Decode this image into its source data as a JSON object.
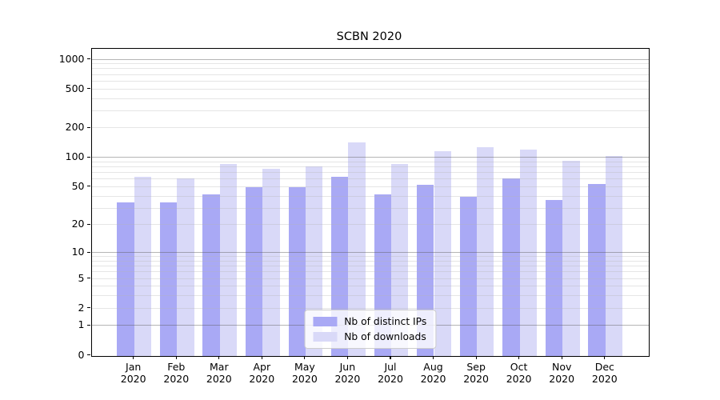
{
  "figure": {
    "title": "SCBN 2020"
  },
  "axes": {
    "y_tick_labels": [
      "0",
      "1",
      "2",
      "5",
      "10",
      "20",
      "50",
      "100",
      "200",
      "500",
      "1000"
    ],
    "x_year": "2020",
    "x_months": [
      "Jan",
      "Feb",
      "Mar",
      "Apr",
      "May",
      "Jun",
      "Jul",
      "Aug",
      "Sep",
      "Oct",
      "Nov",
      "Dec"
    ]
  },
  "legend": {
    "items": [
      {
        "label": "Nb of distinct IPs",
        "color": "#a9a9f5"
      },
      {
        "label": "Nb of downloads",
        "color": "#d9d9f8"
      }
    ]
  },
  "colors": {
    "bar_distinct_ips": "#a9a9f5",
    "bar_downloads": "#d9d9f8",
    "grid_major": "#b5b5b5",
    "grid_minor": "#e5e5e5",
    "axis": "#000000",
    "legend_border": "#cccccc"
  },
  "chart_data": {
    "type": "bar",
    "title": "SCBN 2020",
    "xlabel": "",
    "ylabel": "",
    "x_scale": "categorical months of 2020",
    "y_scale": "log10(value+1)",
    "yticks": [
      0,
      1,
      2,
      5,
      10,
      20,
      50,
      100,
      200,
      500,
      1000
    ],
    "ylim": [
      0,
      1286
    ],
    "grid": "horizontal log-spaced, majors at 1/10/100/1000, minors at 2-9 per decade, drawn over bars",
    "legend_position": "lower center",
    "categories": [
      "Jan 2020",
      "Feb 2020",
      "Mar 2020",
      "Apr 2020",
      "May 2020",
      "Jun 2020",
      "Jul 2020",
      "Aug 2020",
      "Sep 2020",
      "Oct 2020",
      "Nov 2020",
      "Dec 2020"
    ],
    "series": [
      {
        "name": "Nb of distinct IPs",
        "color": "#a9a9f5",
        "values": [
          35,
          35,
          42,
          50,
          50,
          64,
          42,
          53,
          40,
          62,
          37,
          54
        ]
      },
      {
        "name": "Nb of downloads",
        "color": "#d9d9f8",
        "values": [
          64,
          61,
          86,
          78,
          82,
          143,
          86,
          117,
          129,
          122,
          93,
          104
        ]
      }
    ]
  }
}
